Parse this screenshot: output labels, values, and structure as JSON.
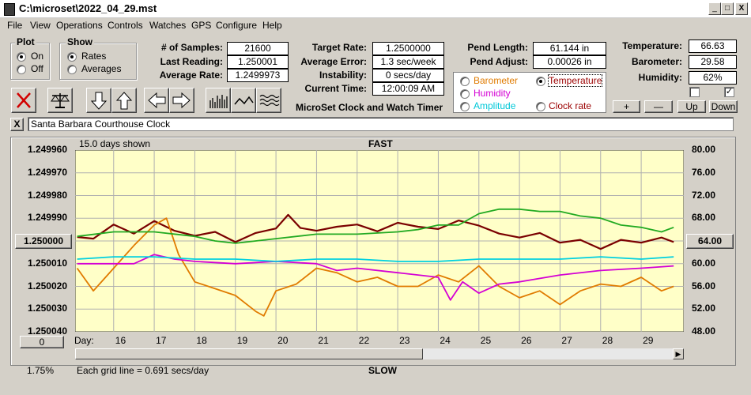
{
  "window": {
    "title": "C:\\microset\\2022_04_29.mst",
    "controls": [
      "_",
      "□",
      "X"
    ]
  },
  "menu": [
    "File",
    "View",
    "Operations",
    "Controls",
    "Watches",
    "GPS",
    "Configure",
    "Help"
  ],
  "plot_group": {
    "title": "Plot",
    "options": [
      "On",
      "Off"
    ],
    "selected": "On"
  },
  "show_group": {
    "title": "Show",
    "options": [
      "Rates",
      "Averages"
    ],
    "selected": "Rates"
  },
  "stats": {
    "samples_label": "# of Samples:",
    "samples": "21600",
    "last_reading_label": "Last Reading:",
    "last_reading": "1.250001",
    "average_rate_label": "Average Rate:",
    "average_rate": "1.2499973",
    "target_rate_label": "Target Rate:",
    "target_rate": "1.2500000",
    "average_error_label": "Average Error:",
    "average_error": "1.3 sec/week",
    "instability_label": "Instability:",
    "instability": "0 secs/day",
    "current_time_label": "Current Time:",
    "current_time": "12:00:09 AM",
    "pend_length_label": "Pend Length:",
    "pend_length": "61.144 in",
    "pend_adjust_label": "Pend Adjust:",
    "pend_adjust": "0.00026 in",
    "temperature_label": "Temperature:",
    "temperature": "66.63",
    "barometer_label": "Barometer:",
    "barometer": "29.58",
    "humidity_label": "Humidity:",
    "humidity": "62%"
  },
  "app_name": "MicroSet Clock and Watch Timer",
  "sensor_options": {
    "items": [
      {
        "label": "Barometer",
        "color": "#e07b00",
        "selected": false
      },
      {
        "label": "Temperature",
        "color": "#9b0000",
        "selected": true
      },
      {
        "label": "Humidity",
        "color": "#d400d4",
        "selected": false
      },
      {
        "label": "Amplitude",
        "color": "#00c8d8",
        "selected": false
      },
      {
        "label": "Clock rate",
        "color": "#9b0000",
        "selected": false
      }
    ]
  },
  "right_buttons": [
    "+",
    "—",
    "Up",
    "Down"
  ],
  "checkboxes": [
    {
      "checked": false
    },
    {
      "checked": true
    }
  ],
  "watch": {
    "close": "X",
    "name": "Santa Barbara Courthouse Clock"
  },
  "chart_header": {
    "days_shown": "15.0 days shown",
    "fast": "FAST",
    "slow": "SLOW"
  },
  "chart_footer": {
    "zero_button": "0",
    "pct": "1.75%",
    "grid_note": "Each grid line = 0.691 secs/day",
    "day_label": "Day:"
  },
  "center_labels": {
    "left": "1.250000",
    "right": "64.00"
  },
  "chart_data": {
    "type": "line",
    "x_label": "Day",
    "x_ticks": [
      "16",
      "17",
      "18",
      "19",
      "20",
      "21",
      "22",
      "23",
      "24",
      "25",
      "26",
      "27",
      "28",
      "29"
    ],
    "xlim": [
      15.05,
      30.05
    ],
    "y_left_ticks": [
      "1.249960",
      "1.249970",
      "1.249980",
      "1.249990",
      "1.250000",
      "1.250010",
      "1.250020",
      "1.250030",
      "1.250040"
    ],
    "y_left_range": [
      1.24996,
      1.25004
    ],
    "y_right_ticks": [
      "80.00",
      "76.00",
      "72.00",
      "68.00",
      "64.00",
      "60.00",
      "56.00",
      "52.00",
      "48.00"
    ],
    "y_right_range": [
      80,
      48
    ],
    "series": [
      {
        "name": "Temperature",
        "axis": "right",
        "color": "#7a0000",
        "x": [
          15.1,
          15.5,
          16.0,
          16.5,
          17.0,
          17.5,
          18.0,
          18.5,
          19.0,
          19.5,
          20.0,
          20.3,
          20.6,
          21.0,
          21.5,
          22.0,
          22.5,
          23.0,
          23.5,
          24.0,
          24.5,
          25.0,
          25.5,
          26.0,
          26.5,
          27.0,
          27.5,
          28.0,
          28.5,
          29.0,
          29.5,
          29.8
        ],
        "y": [
          64.7,
          64.4,
          66.9,
          65.3,
          67.5,
          65.8,
          64.9,
          65.6,
          63.8,
          65.4,
          66.2,
          68.6,
          66.3,
          65.8,
          66.5,
          66.9,
          65.7,
          67.2,
          66.5,
          66.1,
          67.6,
          66.7,
          65.3,
          64.6,
          65.4,
          63.7,
          64.2,
          62.6,
          64.2,
          63.7,
          64.6,
          63.8
        ]
      },
      {
        "name": "Barometer",
        "axis": "left",
        "color": "#e07b00",
        "x": [
          15.1,
          15.5,
          16.0,
          16.5,
          17.0,
          17.3,
          17.6,
          18.0,
          18.5,
          19.0,
          19.5,
          19.7,
          20.0,
          20.5,
          21.0,
          21.5,
          22.0,
          22.5,
          23.0,
          23.5,
          24.0,
          24.5,
          25.0,
          25.5,
          26.0,
          26.5,
          27.0,
          27.5,
          28.0,
          28.5,
          29.0,
          29.5,
          29.8
        ],
        "y": [
          1.250012,
          1.250022,
          1.250012,
          1.250002,
          1.249993,
          1.24999,
          1.250006,
          1.250018,
          1.250021,
          1.250024,
          1.250031,
          1.250033,
          1.250022,
          1.250019,
          1.250012,
          1.250014,
          1.250018,
          1.250016,
          1.25002,
          1.25002,
          1.250015,
          1.250018,
          1.250011,
          1.25002,
          1.250025,
          1.250022,
          1.250028,
          1.250022,
          1.250019,
          1.25002,
          1.250016,
          1.250022,
          1.25002
        ]
      },
      {
        "name": "Temperature trend",
        "axis": "left",
        "color": "#22aa22",
        "x": [
          15.1,
          16.0,
          17.0,
          18.0,
          18.5,
          19.0,
          20.0,
          21.0,
          22.0,
          23.0,
          23.5,
          24.0,
          24.5,
          25.0,
          25.5,
          26.0,
          26.5,
          27.0,
          27.5,
          28.0,
          28.5,
          29.0,
          29.5,
          29.8
        ],
        "y": [
          1.249998,
          1.249996,
          1.249996,
          1.249998,
          1.25,
          1.250001,
          1.249999,
          1.249997,
          1.249997,
          1.249996,
          1.249995,
          1.249993,
          1.249993,
          1.249988,
          1.249986,
          1.249986,
          1.249987,
          1.249987,
          1.249989,
          1.24999,
          1.249993,
          1.249994,
          1.249996,
          1.249994
        ]
      },
      {
        "name": "Humidity",
        "axis": "left",
        "color": "#d400d4",
        "x": [
          15.1,
          16.0,
          16.5,
          17.0,
          17.5,
          18.0,
          19.0,
          20.0,
          21.0,
          21.5,
          22.0,
          23.0,
          24.0,
          24.3,
          24.6,
          25.0,
          25.5,
          26.0,
          27.0,
          28.0,
          29.0,
          29.8
        ],
        "y": [
          1.25001,
          1.25001,
          1.25001,
          1.250006,
          1.250008,
          1.250009,
          1.25001,
          1.250009,
          1.25001,
          1.250013,
          1.250012,
          1.250014,
          1.250016,
          1.250026,
          1.250018,
          1.250023,
          1.250019,
          1.250018,
          1.250015,
          1.250013,
          1.250012,
          1.250011
        ]
      },
      {
        "name": "Amplitude",
        "axis": "left",
        "color": "#00d0e0",
        "x": [
          15.1,
          16.0,
          17.0,
          18.0,
          19.0,
          20.0,
          21.0,
          22.0,
          23.0,
          24.0,
          25.0,
          26.0,
          27.0,
          28.0,
          29.0,
          29.8
        ],
        "y": [
          1.250008,
          1.250007,
          1.250007,
          1.250008,
          1.250008,
          1.250009,
          1.250008,
          1.250008,
          1.250009,
          1.250009,
          1.250008,
          1.250008,
          1.250008,
          1.250007,
          1.250008,
          1.250007
        ]
      }
    ]
  }
}
